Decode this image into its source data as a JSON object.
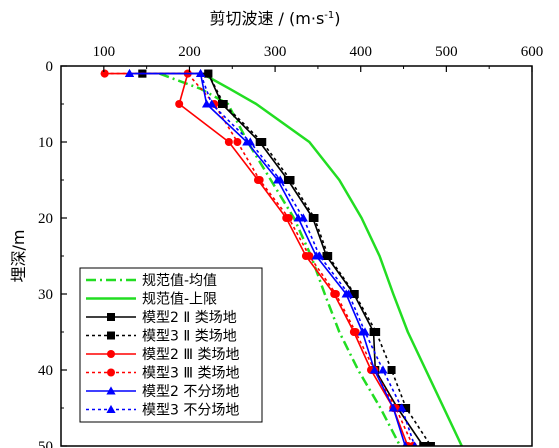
{
  "chart_data": {
    "type": "line",
    "title": "",
    "xlabel": "剪切波速 / (m·s",
    "xlabel_sup": "-1",
    "xlabel_end": ")",
    "ylabel": "埋深/m",
    "x_axis_position": "top",
    "y_inverted": true,
    "xlim": [
      50,
      600
    ],
    "ylim": [
      0,
      50
    ],
    "xticks": [
      100,
      200,
      300,
      400,
      500,
      600
    ],
    "yticks": [
      0,
      10,
      20,
      30,
      40,
      50
    ],
    "grid": false,
    "legend_position": "bottom-left",
    "series": [
      {
        "name": "规范值-均值",
        "color": "#22dd22",
        "dash": "dashdot",
        "marker": "none",
        "points": [
          [
            165,
            1
          ],
          [
            213,
            3
          ],
          [
            245,
            5
          ],
          [
            268,
            10
          ],
          [
            295,
            15
          ],
          [
            322,
            20
          ],
          [
            342,
            25
          ],
          [
            358,
            30
          ],
          [
            375,
            35
          ],
          [
            397,
            40
          ],
          [
            423,
            45
          ],
          [
            446,
            50
          ]
        ]
      },
      {
        "name": "规范值-上限",
        "color": "#22dd22",
        "dash": "solid",
        "marker": "none",
        "points": [
          [
            215,
            1
          ],
          [
            247,
            3
          ],
          [
            278,
            5
          ],
          [
            340,
            10
          ],
          [
            375,
            15
          ],
          [
            401,
            20
          ],
          [
            422,
            25
          ],
          [
            438,
            30
          ],
          [
            455,
            35
          ],
          [
            476,
            40
          ],
          [
            497,
            45
          ],
          [
            518,
            50
          ]
        ]
      },
      {
        "name": "模型2 Ⅱ 类场地",
        "color": "#000000",
        "dash": "solid",
        "marker": "square",
        "points": [
          [
            145,
            1
          ],
          [
            222,
            1
          ],
          [
            238,
            5
          ],
          [
            282,
            10
          ],
          [
            315,
            15
          ],
          [
            344,
            20
          ],
          [
            360,
            25
          ],
          [
            392,
            30
          ],
          [
            415,
            35
          ],
          [
            417,
            40
          ],
          [
            443,
            45
          ],
          [
            473,
            50
          ]
        ]
      },
      {
        "name": "模型3 Ⅱ 类场地",
        "color": "#000000",
        "dash": "dot",
        "marker": "square",
        "points": [
          [
            145,
            1
          ],
          [
            222,
            1
          ],
          [
            240,
            5
          ],
          [
            285,
            10
          ],
          [
            318,
            15
          ],
          [
            346,
            20
          ],
          [
            362,
            25
          ],
          [
            393,
            30
          ],
          [
            418,
            35
          ],
          [
            436,
            40
          ],
          [
            453,
            45
          ],
          [
            482,
            50
          ]
        ]
      },
      {
        "name": "模型2 Ⅲ 类场地",
        "color": "#ff0000",
        "dash": "solid",
        "marker": "circle",
        "points": [
          [
            101,
            1
          ],
          [
            198,
            1
          ],
          [
            188,
            5
          ],
          [
            246,
            10
          ],
          [
            280,
            15
          ],
          [
            313,
            20
          ],
          [
            336,
            25
          ],
          [
            369,
            30
          ],
          [
            392,
            35
          ],
          [
            412,
            40
          ],
          [
            438,
            45
          ],
          [
            455,
            50
          ]
        ]
      },
      {
        "name": "模型3 Ⅲ 类场地",
        "color": "#ff0000",
        "dash": "dot",
        "marker": "circle",
        "points": [
          [
            101,
            1
          ],
          [
            198,
            1
          ],
          [
            229,
            5
          ],
          [
            256,
            10
          ],
          [
            282,
            15
          ],
          [
            316,
            20
          ],
          [
            340,
            25
          ],
          [
            371,
            30
          ],
          [
            394,
            35
          ],
          [
            416,
            40
          ],
          [
            441,
            45
          ],
          [
            461,
            50
          ]
        ]
      },
      {
        "name": "模型2 不分场地",
        "color": "#0000ff",
        "dash": "solid",
        "marker": "triangle",
        "points": [
          [
            130,
            1
          ],
          [
            213,
            1
          ],
          [
            220,
            5
          ],
          [
            267,
            10
          ],
          [
            303,
            15
          ],
          [
            327,
            20
          ],
          [
            348,
            25
          ],
          [
            383,
            30
          ],
          [
            402,
            35
          ],
          [
            416,
            40
          ],
          [
            438,
            45
          ],
          [
            452,
            50
          ]
        ]
      },
      {
        "name": "模型3 不分场地",
        "color": "#0000ff",
        "dash": "dot",
        "marker": "triangle",
        "points": [
          [
            130,
            1
          ],
          [
            213,
            1
          ],
          [
            226,
            5
          ],
          [
            271,
            10
          ],
          [
            306,
            15
          ],
          [
            333,
            20
          ],
          [
            352,
            25
          ],
          [
            386,
            30
          ],
          [
            405,
            35
          ],
          [
            426,
            40
          ],
          [
            448,
            45
          ],
          [
            463,
            50
          ]
        ]
      }
    ]
  }
}
